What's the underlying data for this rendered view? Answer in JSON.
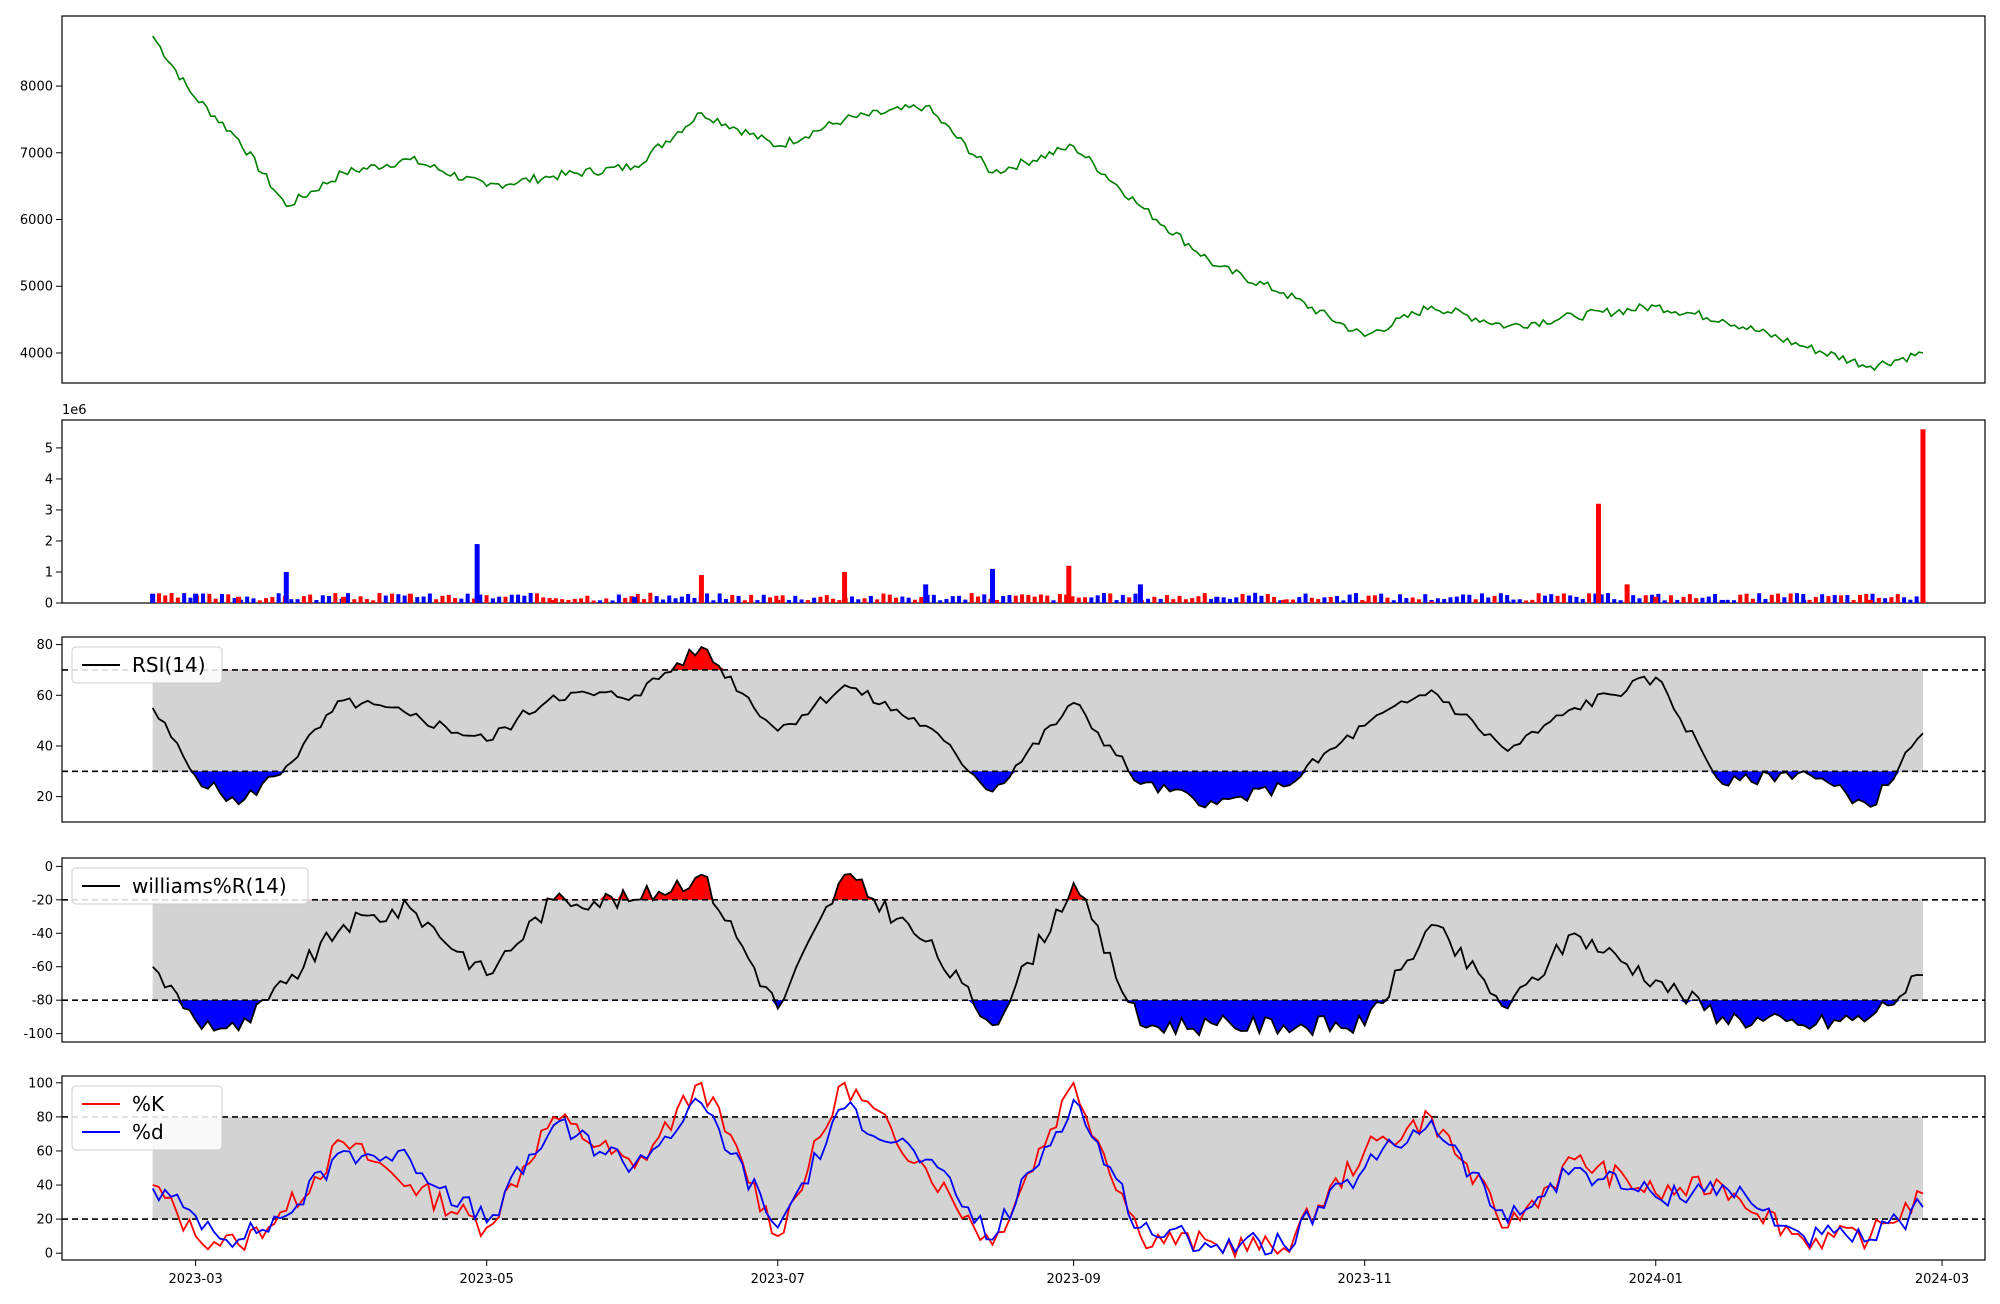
{
  "chart_data": [
    {
      "id": "price",
      "type": "line",
      "title": "",
      "xlabel": "",
      "ylabel": "",
      "ylim": [
        3550,
        9050
      ],
      "yticks": [
        4000,
        5000,
        6000,
        7000,
        8000
      ],
      "color": "#008000",
      "x": [
        "2023-02-20",
        "2023-02-28",
        "2023-03-10",
        "2023-03-20",
        "2023-04-01",
        "2023-04-15",
        "2023-05-01",
        "2023-05-15",
        "2023-06-01",
        "2023-06-15",
        "2023-07-01",
        "2023-07-15",
        "2023-08-01",
        "2023-08-15",
        "2023-09-01",
        "2023-09-15",
        "2023-10-01",
        "2023-10-15",
        "2023-11-01",
        "2023-11-15",
        "2023-12-01",
        "2023-12-15",
        "2024-01-01",
        "2024-01-15",
        "2024-02-01",
        "2024-02-15",
        "2024-02-26"
      ],
      "values": [
        8750,
        7900,
        7200,
        6200,
        6700,
        6900,
        6500,
        6650,
        6800,
        7600,
        7100,
        7500,
        7700,
        6700,
        7100,
        6200,
        5300,
        4900,
        4250,
        4700,
        4400,
        4550,
        4700,
        4500,
        4100,
        3800,
        4000
      ]
    },
    {
      "id": "volume",
      "type": "bar",
      "title": "",
      "offset_text": "1e6",
      "ylim": [
        0,
        5.9
      ],
      "yticks": [
        0,
        1,
        2,
        3,
        4,
        5
      ],
      "up_color": "#0000ff",
      "down_color": "#ff0000",
      "x": [
        "2023-02-20",
        "2023-03-01",
        "2023-03-10",
        "2023-03-20",
        "2023-04-01",
        "2023-04-15",
        "2023-04-29",
        "2023-05-15",
        "2023-06-01",
        "2023-06-15",
        "2023-07-01",
        "2023-07-15",
        "2023-08-01",
        "2023-08-15",
        "2023-08-31",
        "2023-09-15",
        "2023-10-01",
        "2023-10-15",
        "2023-11-01",
        "2023-11-15",
        "2023-12-01",
        "2023-12-20",
        "2023-12-26",
        "2024-01-01",
        "2024-01-15",
        "2024-02-01",
        "2024-02-15",
        "2024-02-26"
      ],
      "values": [
        0.3,
        0.3,
        0.2,
        1.0,
        0.2,
        0.3,
        1.9,
        0.1,
        0.2,
        0.9,
        0.1,
        1.0,
        0.6,
        1.1,
        1.2,
        0.6,
        0.2,
        0.1,
        0.05,
        0.05,
        0.05,
        3.2,
        0.6,
        0.2,
        0.1,
        0.1,
        0.1,
        5.6
      ],
      "directions": [
        "up",
        "up",
        "down",
        "up",
        "down",
        "down",
        "up",
        "down",
        "up",
        "down",
        "down",
        "down",
        "up",
        "up",
        "down",
        "up",
        "up",
        "down",
        "down",
        "down",
        "up",
        "down",
        "down",
        "down",
        "up",
        "up",
        "down",
        "down"
      ]
    },
    {
      "id": "rsi",
      "type": "line",
      "ylim": [
        10,
        83
      ],
      "yticks": [
        20,
        40,
        60,
        80
      ],
      "upper": 70,
      "lower": 30,
      "series": [
        {
          "name": "RSI(14)",
          "color": "#000000"
        }
      ],
      "x": [
        "2023-02-20",
        "2023-03-01",
        "2023-03-10",
        "2023-03-20",
        "2023-04-01",
        "2023-04-15",
        "2023-05-01",
        "2023-05-15",
        "2023-06-01",
        "2023-06-15",
        "2023-07-01",
        "2023-07-15",
        "2023-08-01",
        "2023-08-15",
        "2023-09-01",
        "2023-09-15",
        "2023-10-01",
        "2023-10-15",
        "2023-11-01",
        "2023-11-15",
        "2023-12-01",
        "2023-12-15",
        "2024-01-01",
        "2024-01-15",
        "2024-02-01",
        "2024-02-15",
        "2024-02-26"
      ],
      "values": [
        55,
        28,
        17,
        32,
        58,
        52,
        42,
        60,
        60,
        79,
        46,
        64,
        48,
        22,
        57,
        25,
        17,
        24,
        48,
        62,
        38,
        55,
        67,
        25,
        30,
        16,
        45
      ]
    },
    {
      "id": "williams",
      "type": "line",
      "ylim": [
        -105,
        5
      ],
      "yticks": [
        -100,
        -80,
        -60,
        -40,
        -20,
        0
      ],
      "upper": -20,
      "lower": -80,
      "series": [
        {
          "name": "williams%R(14)",
          "color": "#000000"
        }
      ],
      "x": [
        "2023-02-20",
        "2023-03-01",
        "2023-03-10",
        "2023-03-20",
        "2023-04-01",
        "2023-04-15",
        "2023-05-01",
        "2023-05-15",
        "2023-06-01",
        "2023-06-15",
        "2023-07-01",
        "2023-07-15",
        "2023-08-01",
        "2023-08-15",
        "2023-09-01",
        "2023-09-15",
        "2023-10-01",
        "2023-10-15",
        "2023-11-01",
        "2023-11-15",
        "2023-12-01",
        "2023-12-15",
        "2024-01-01",
        "2024-01-15",
        "2024-02-01",
        "2024-02-15",
        "2024-02-26"
      ],
      "values": [
        -60,
        -92,
        -98,
        -70,
        -35,
        -25,
        -65,
        -20,
        -20,
        -5,
        -85,
        -5,
        -45,
        -95,
        -10,
        -95,
        -95,
        -95,
        -95,
        -35,
        -85,
        -40,
        -68,
        -90,
        -95,
        -90,
        -65
      ]
    },
    {
      "id": "stochastic",
      "type": "line",
      "ylim": [
        -4,
        104
      ],
      "yticks": [
        0,
        20,
        40,
        60,
        80,
        100
      ],
      "upper": 80,
      "lower": 20,
      "series": [
        {
          "name": "%K",
          "color": "#ff0000",
          "values": [
            40,
            10,
            5,
            25,
            65,
            40,
            15,
            80,
            50,
            100,
            10,
            100,
            50,
            5,
            100,
            10,
            5,
            3,
            60,
            80,
            15,
            55,
            35,
            40,
            8,
            10,
            35
          ]
        },
        {
          "name": "%d",
          "color": "#0000ff",
          "values": [
            38,
            22,
            8,
            22,
            60,
            55,
            18,
            75,
            52,
            88,
            15,
            85,
            55,
            8,
            90,
            15,
            5,
            5,
            50,
            78,
            18,
            50,
            33,
            40,
            10,
            8,
            27
          ]
        }
      ],
      "x": [
        "2023-02-20",
        "2023-03-01",
        "2023-03-10",
        "2023-03-20",
        "2023-04-01",
        "2023-04-15",
        "2023-05-01",
        "2023-05-15",
        "2023-06-01",
        "2023-06-15",
        "2023-07-01",
        "2023-07-15",
        "2023-08-01",
        "2023-08-15",
        "2023-09-01",
        "2023-09-15",
        "2023-10-01",
        "2023-10-15",
        "2023-11-01",
        "2023-11-15",
        "2023-12-01",
        "2023-12-15",
        "2024-01-01",
        "2024-01-15",
        "2024-02-01",
        "2024-02-15",
        "2024-02-26"
      ]
    }
  ],
  "x_axis": {
    "range": [
      "2023-02-01",
      "2024-03-10"
    ],
    "ticks": [
      {
        "date": "2023-03-01",
        "label": "2023-03"
      },
      {
        "date": "2023-05-01",
        "label": "2023-05"
      },
      {
        "date": "2023-07-01",
        "label": "2023-07"
      },
      {
        "date": "2023-09-01",
        "label": "2023-09"
      },
      {
        "date": "2023-11-01",
        "label": "2023-11"
      },
      {
        "date": "2024-01-01",
        "label": "2024-01"
      },
      {
        "date": "2024-03-01",
        "label": "2024-03"
      }
    ]
  },
  "colors": {
    "band_fill": "#d3d3d3",
    "overbought_fill": "#ff0000",
    "oversold_fill": "#0000ff",
    "threshold_line": "#000000"
  }
}
